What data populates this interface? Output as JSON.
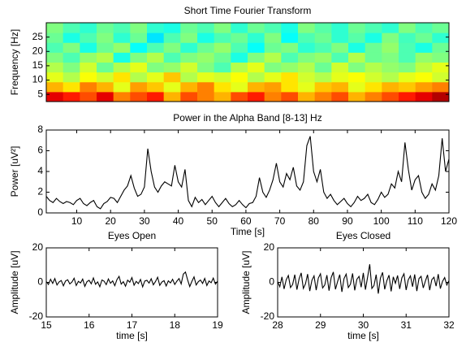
{
  "chart_data": [
    {
      "type": "heatmap",
      "title": "Short Time Fourier Transform",
      "ylabel": "Frequency [Hz]",
      "colormap": "jet",
      "xlim": [
        0,
        120
      ],
      "ylim": [
        2.5,
        30
      ],
      "yticks": [
        5,
        10,
        15,
        20,
        25
      ],
      "z": [
        [
          0.9,
          0.85,
          0.8,
          0.9,
          0.75,
          0.8,
          0.85,
          0.7,
          0.8,
          0.75,
          0.7,
          0.8,
          0.85,
          0.75,
          0.8,
          0.7,
          0.75,
          0.8,
          0.7,
          0.75,
          0.8,
          0.85,
          0.9,
          0.95
        ],
        [
          0.7,
          0.65,
          0.75,
          0.7,
          0.6,
          0.72,
          0.68,
          0.6,
          0.7,
          0.75,
          0.65,
          0.6,
          0.7,
          0.72,
          0.65,
          0.6,
          0.68,
          0.7,
          0.6,
          0.65,
          0.7,
          0.68,
          0.72,
          0.75
        ],
        [
          0.6,
          0.55,
          0.62,
          0.58,
          0.65,
          0.55,
          0.6,
          0.68,
          0.55,
          0.6,
          0.58,
          0.62,
          0.55,
          0.6,
          0.65,
          0.58,
          0.55,
          0.6,
          0.62,
          0.58,
          0.55,
          0.6,
          0.62,
          0.58
        ],
        [
          0.55,
          0.5,
          0.58,
          0.48,
          0.55,
          0.6,
          0.5,
          0.52,
          0.58,
          0.5,
          0.45,
          0.55,
          0.6,
          0.5,
          0.52,
          0.55,
          0.48,
          0.58,
          0.5,
          0.55,
          0.52,
          0.5,
          0.56,
          0.6
        ],
        [
          0.5,
          0.45,
          0.52,
          0.55,
          0.4,
          0.5,
          0.55,
          0.45,
          0.5,
          0.52,
          0.48,
          0.4,
          0.5,
          0.55,
          0.45,
          0.5,
          0.52,
          0.45,
          0.55,
          0.48,
          0.5,
          0.45,
          0.52,
          0.5
        ],
        [
          0.45,
          0.5,
          0.4,
          0.48,
          0.52,
          0.38,
          0.45,
          0.5,
          0.42,
          0.48,
          0.52,
          0.45,
          0.38,
          0.48,
          0.5,
          0.42,
          0.45,
          0.5,
          0.4,
          0.48,
          0.52,
          0.45,
          0.4,
          0.48
        ],
        [
          0.48,
          0.4,
          0.45,
          0.5,
          0.42,
          0.48,
          0.35,
          0.45,
          0.5,
          0.4,
          0.45,
          0.48,
          0.42,
          0.5,
          0.38,
          0.45,
          0.48,
          0.42,
          0.46,
          0.4,
          0.5,
          0.44,
          0.48,
          0.42
        ],
        [
          0.5,
          0.45,
          0.42,
          0.48,
          0.45,
          0.5,
          0.42,
          0.4,
          0.48,
          0.45,
          0.5,
          0.42,
          0.48,
          0.45,
          0.4,
          0.5,
          0.46,
          0.42,
          0.48,
          0.45,
          0.42,
          0.5,
          0.45,
          0.48
        ]
      ]
    },
    {
      "type": "line",
      "title": "Power in the Alpha Band [8-13] Hz",
      "xlabel": "Time [s]",
      "ylabel": "Power [uV²]",
      "color": "#000000",
      "xlim": [
        1,
        120
      ],
      "ylim": [
        0,
        8
      ],
      "xticks": [
        10,
        20,
        30,
        40,
        50,
        60,
        70,
        80,
        90,
        100,
        110,
        120
      ],
      "yticks": [
        0,
        2,
        4,
        6,
        8
      ],
      "x": [
        1,
        2,
        3,
        4,
        5,
        6,
        7,
        8,
        9,
        10,
        11,
        12,
        13,
        14,
        15,
        16,
        17,
        18,
        19,
        20,
        21,
        22,
        23,
        24,
        25,
        26,
        27,
        28,
        29,
        30,
        31,
        32,
        33,
        34,
        35,
        36,
        37,
        38,
        39,
        40,
        41,
        42,
        43,
        44,
        45,
        46,
        47,
        48,
        49,
        50,
        51,
        52,
        53,
        54,
        55,
        56,
        57,
        58,
        59,
        60,
        61,
        62,
        63,
        64,
        65,
        66,
        67,
        68,
        69,
        70,
        71,
        72,
        73,
        74,
        75,
        76,
        77,
        78,
        79,
        80,
        81,
        82,
        83,
        84,
        85,
        86,
        87,
        88,
        89,
        90,
        91,
        92,
        93,
        94,
        95,
        96,
        97,
        98,
        99,
        100,
        101,
        102,
        103,
        104,
        105,
        106,
        107,
        108,
        109,
        110,
        111,
        112,
        113,
        114,
        115,
        116,
        117,
        118,
        119,
        120
      ],
      "values": [
        1.6,
        1.2,
        1.0,
        1.4,
        1.1,
        0.9,
        1.1,
        1.0,
        0.8,
        1.2,
        1.4,
        0.9,
        0.7,
        1.0,
        1.2,
        0.6,
        0.4,
        0.9,
        1.1,
        1.5,
        1.4,
        1.0,
        1.6,
        2.2,
        2.6,
        3.6,
        2.4,
        1.6,
        1.8,
        2.5,
        6.2,
        4.0,
        2.5,
        2.0,
        2.6,
        3.0,
        2.8,
        2.6,
        4.6,
        3.0,
        2.5,
        4.2,
        1.2,
        0.6,
        1.5,
        1.0,
        1.3,
        0.8,
        1.2,
        1.6,
        1.0,
        0.6,
        1.0,
        1.4,
        0.9,
        0.6,
        0.8,
        1.2,
        0.8,
        0.5,
        0.9,
        1.0,
        1.6,
        3.4,
        2.0,
        1.5,
        2.2,
        3.2,
        4.8,
        3.0,
        2.5,
        3.8,
        3.2,
        4.4,
        2.6,
        2.2,
        3.0,
        6.5,
        7.4,
        4.0,
        3.0,
        4.2,
        2.0,
        1.4,
        1.8,
        1.2,
        0.8,
        1.1,
        1.4,
        0.9,
        0.6,
        1.0,
        1.6,
        1.2,
        1.4,
        1.8,
        1.0,
        0.8,
        1.3,
        2.0,
        1.5,
        1.8,
        2.8,
        2.4,
        4.0,
        3.0,
        6.8,
        4.2,
        2.2,
        3.2,
        3.6,
        2.0,
        1.4,
        1.8,
        2.8,
        2.2,
        3.6,
        7.2,
        4.0,
        5.2
      ]
    },
    {
      "type": "line",
      "title": "Eyes Open",
      "xlabel": "time [s]",
      "ylabel": "Amplitude [uV]",
      "color": "#000000",
      "xlim": [
        15,
        19
      ],
      "ylim": [
        -20,
        20
      ],
      "xticks": [
        15,
        16,
        17,
        18,
        19
      ],
      "yticks": [
        -20,
        0,
        20
      ],
      "x": [
        15,
        15.05,
        15.1,
        15.15,
        15.2,
        15.25,
        15.3,
        15.35,
        15.4,
        15.45,
        15.5,
        15.55,
        15.6,
        15.65,
        15.7,
        15.75,
        15.8,
        15.85,
        15.9,
        15.95,
        16,
        16.05,
        16.1,
        16.15,
        16.2,
        16.25,
        16.3,
        16.35,
        16.4,
        16.45,
        16.5,
        16.55,
        16.6,
        16.65,
        16.7,
        16.75,
        16.8,
        16.85,
        16.9,
        16.95,
        17,
        17.05,
        17.1,
        17.15,
        17.2,
        17.25,
        17.3,
        17.35,
        17.4,
        17.45,
        17.5,
        17.55,
        17.6,
        17.65,
        17.7,
        17.75,
        17.8,
        17.85,
        17.9,
        17.95,
        18,
        18.05,
        18.1,
        18.15,
        18.2,
        18.25,
        18.3,
        18.35,
        18.4,
        18.45,
        18.5,
        18.55,
        18.6,
        18.65,
        18.7,
        18.75,
        18.8,
        18.85,
        18.9,
        18.95,
        19
      ],
      "values": [
        0.5,
        -1.2,
        1.8,
        -0.6,
        2.2,
        -1.5,
        0.3,
        1.1,
        -2.0,
        0.8,
        1.5,
        -0.9,
        0.2,
        2.4,
        -1.8,
        0.6,
        -0.3,
        1.9,
        -2.3,
        0.4,
        1.2,
        -0.8,
        2.6,
        -1.1,
        0.3,
        -2.5,
        1.4,
        0.7,
        -1.3,
        2.0,
        -0.5,
        0.9,
        -1.9,
        1.6,
        3.5,
        -1.0,
        0.4,
        -2.2,
        1.3,
        0.1,
        2.8,
        -1.6,
        0.6,
        -0.7,
        1.7,
        -2.6,
        0.8,
        1.2,
        -0.4,
        2.1,
        -1.4,
        0.5,
        3.0,
        -1.7,
        0.2,
        1.0,
        -2.1,
        0.9,
        -0.3,
        1.8,
        -1.2,
        0.7,
        2.2,
        -0.9,
        4.8,
        6.0,
        1.5,
        -2.4,
        0.6,
        3.2,
        -1.5,
        0.4,
        1.4,
        -0.6,
        2.3,
        -1.8,
        0.8,
        -0.2,
        2.5,
        -1.0,
        0.7
      ]
    },
    {
      "type": "line",
      "title": "Eyes Closed",
      "xlabel": "time [s]",
      "ylabel": "Amplitude [uV]",
      "color": "#000000",
      "xlim": [
        28,
        32
      ],
      "ylim": [
        -20,
        20
      ],
      "xticks": [
        28,
        29,
        30,
        31,
        32
      ],
      "yticks": [
        -20,
        0,
        20
      ],
      "x": [
        28,
        28.05,
        28.1,
        28.15,
        28.2,
        28.25,
        28.3,
        28.35,
        28.4,
        28.45,
        28.5,
        28.55,
        28.6,
        28.65,
        28.7,
        28.75,
        28.8,
        28.85,
        28.9,
        28.95,
        29,
        29.05,
        29.1,
        29.15,
        29.2,
        29.25,
        29.3,
        29.35,
        29.4,
        29.45,
        29.5,
        29.55,
        29.6,
        29.65,
        29.7,
        29.75,
        29.8,
        29.85,
        29.9,
        29.95,
        30,
        30.05,
        30.1,
        30.15,
        30.2,
        30.25,
        30.3,
        30.35,
        30.4,
        30.45,
        30.5,
        30.55,
        30.6,
        30.65,
        30.7,
        30.75,
        30.8,
        30.85,
        30.9,
        30.95,
        31,
        31.05,
        31.1,
        31.15,
        31.2,
        31.25,
        31.3,
        31.35,
        31.4,
        31.45,
        31.5,
        31.55,
        31.6,
        31.65,
        31.7,
        31.75,
        31.8,
        31.85,
        31.9,
        31.95,
        32
      ],
      "values": [
        0.5,
        -2.5,
        3.2,
        -3.8,
        1.5,
        4.0,
        -3.0,
        -1.2,
        4.5,
        -4.2,
        2.0,
        5.5,
        -3.5,
        -0.8,
        4.8,
        -5.0,
        1.2,
        3.8,
        -4.5,
        2.5,
        5.0,
        -3.2,
        -1.5,
        4.2,
        -4.8,
        2.8,
        6.0,
        -4.0,
        0.5,
        4.5,
        -5.5,
        2.2,
        4.8,
        -3.0,
        -1.0,
        5.2,
        -4.6,
        1.8,
        3.5,
        -2.8,
        5.5,
        -4.2,
        3.0,
        10.5,
        -3.5,
        -1.8,
        4.5,
        -6.5,
        2.5,
        5.8,
        -4.0,
        1.0,
        4.2,
        -5.2,
        3.2,
        -0.5,
        4.0,
        -3.8,
        2.6,
        5.0,
        -4.4,
        1.5,
        3.8,
        -2.5,
        4.6,
        -5.0,
        2.2,
        3.5,
        -3.2,
        0.8,
        4.4,
        -4.5,
        1.6,
        3.0,
        -2.2,
        4.8,
        -3.6,
        0.6,
        2.8,
        -1.5,
        1.0
      ]
    }
  ]
}
